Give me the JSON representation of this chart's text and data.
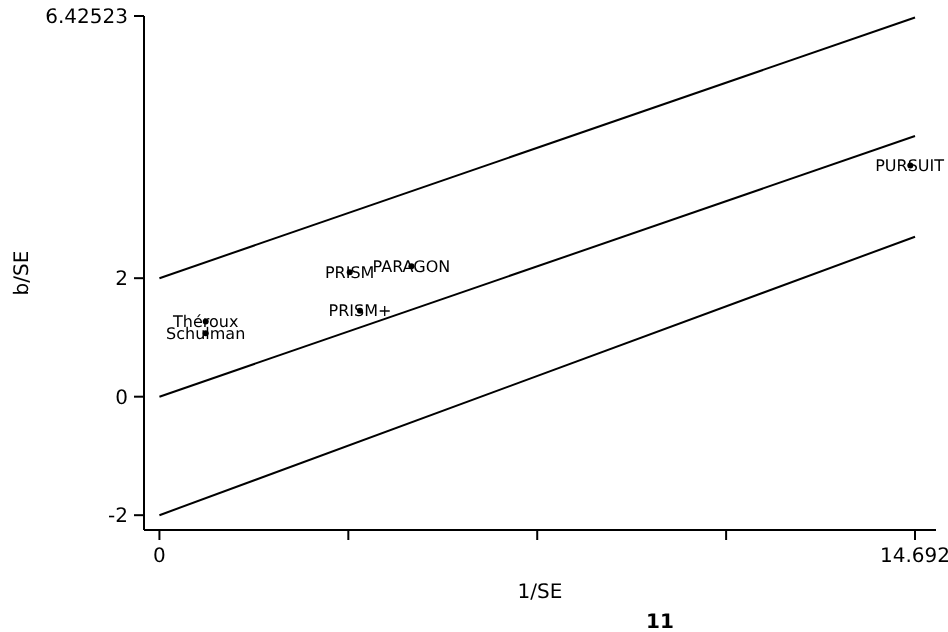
{
  "chart_data": {
    "type": "line",
    "xlabel": "1/SE",
    "ylabel": "b/SE",
    "xlim": [
      -0.3,
      15.1
    ],
    "ylim": [
      -2.25,
      6.42523
    ],
    "xticks": [
      0,
      {
        "value": 3.673,
        "label": null
      },
      {
        "value": 7.346,
        "label": null
      },
      {
        "value": 11.019,
        "label": null
      },
      14.692
    ],
    "yticks": [
      -2,
      0,
      2,
      6.42523
    ],
    "grid": false,
    "line_style": "solid",
    "series": [
      {
        "color": "#000000",
        "x": [
          0,
          14.692
        ],
        "values": [
          2,
          6.4
        ]
      },
      {
        "color": "#000000",
        "x": [
          0,
          14.692
        ],
        "values": [
          0,
          4.4
        ]
      },
      {
        "color": "#000000",
        "x": [
          0,
          14.692
        ],
        "values": [
          -2,
          2.7
        ]
      },
      {
        "type": "scatter",
        "name": "Théroux",
        "color": "#000000",
        "x": [
          0.9
        ],
        "values": [
          1.27
        ]
      },
      {
        "type": "scatter",
        "name": "Schulman",
        "color": "#000000",
        "x": [
          0.9
        ],
        "values": [
          1.07
        ]
      },
      {
        "type": "scatter",
        "name": "PRISM",
        "color": "#000000",
        "x": [
          3.7
        ],
        "values": [
          2.1
        ]
      },
      {
        "type": "scatter",
        "name": "PARAGON",
        "color": "#000000",
        "x": [
          4.9
        ],
        "values": [
          2.2
        ]
      },
      {
        "type": "scatter",
        "name": "PRISM+",
        "color": "#000000",
        "x": [
          3.9
        ],
        "values": [
          1.45
        ]
      },
      {
        "type": "scatter",
        "name": "PURSUIT",
        "color": "#000000",
        "x": [
          14.6
        ],
        "values": [
          3.9
        ]
      }
    ],
    "annotations": [
      "11"
    ]
  }
}
